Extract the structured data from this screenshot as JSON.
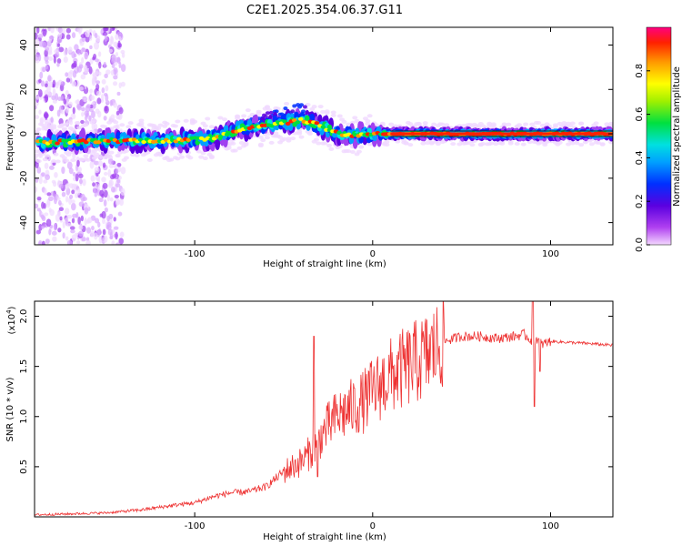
{
  "title": "C2E1.2025.354.06.37.G11",
  "chart_data": [
    {
      "type": "heatmap",
      "xlabel": "Height of straight line (km)",
      "ylabel": "Frequency (Hz)",
      "xlim": [
        -190,
        135
      ],
      "ylim": [
        -50,
        48
      ],
      "xticks": [
        -100,
        0,
        100
      ],
      "xtick_labels": [
        "-100",
        "0",
        "100"
      ],
      "yticks": [
        -40,
        -20,
        0,
        20,
        40
      ],
      "ytick_labels": [
        "-40",
        "-20",
        "0",
        "20",
        "40"
      ],
      "ridge_x": [
        -190,
        -150,
        -110,
        -90,
        -75,
        -60,
        -50,
        -40,
        -33,
        -25,
        -18,
        -10,
        -5,
        0,
        10,
        20,
        40,
        60,
        80,
        90,
        110,
        135
      ],
      "ridge_y": [
        -4,
        -3,
        -3,
        -2,
        2,
        4,
        5,
        6,
        5,
        2,
        0,
        -1,
        0,
        0,
        0,
        0,
        0,
        0,
        0,
        0,
        0,
        0
      ],
      "colorbar": {
        "label": "Normalized spectral amplitude",
        "range": [
          0,
          1
        ],
        "ticks": [
          0.0,
          0.2,
          0.4,
          0.6,
          0.8
        ],
        "tick_labels": [
          "0.0",
          "0.2",
          "0.4",
          "0.6",
          "0.8"
        ]
      }
    },
    {
      "type": "line",
      "xlabel": "Height of straight line (km)",
      "ylabel": "SNR (10 * v/v)",
      "scale_label": "(x10",
      "scale_exp": "4",
      "xlim": [
        -190,
        135
      ],
      "ylim": [
        0,
        2.15
      ],
      "xticks": [
        -100,
        0,
        100
      ],
      "xtick_labels": [
        "-100",
        "0",
        "100"
      ],
      "yticks": [
        0.5,
        1.0,
        1.5,
        2.0
      ],
      "ytick_labels": [
        "0.5",
        "1.0",
        "1.5",
        "2.0"
      ],
      "series_color": "#ee3333",
      "x": [
        -190,
        -150,
        -130,
        -110,
        -100,
        -90,
        -80,
        -70,
        -60,
        -50,
        -40,
        -35,
        -30,
        -25,
        -20,
        -15,
        -10,
        -5,
        0,
        10,
        20,
        30,
        40,
        50,
        60,
        70,
        80,
        85,
        90,
        92,
        95,
        100,
        110,
        120,
        135
      ],
      "values": [
        0.02,
        0.04,
        0.07,
        0.12,
        0.14,
        0.2,
        0.24,
        0.25,
        0.3,
        0.45,
        0.55,
        0.65,
        0.78,
        0.9,
        1.0,
        1.05,
        1.1,
        1.15,
        1.25,
        1.4,
        1.5,
        1.6,
        1.75,
        1.8,
        1.8,
        1.78,
        1.8,
        1.82,
        1.75,
        1.78,
        1.72,
        1.75,
        1.74,
        1.73,
        1.71
      ],
      "spikes": [
        {
          "x": -33,
          "value": 1.8
        },
        {
          "x": -31,
          "value": 0.4
        },
        {
          "x": 90,
          "value": 2.15
        },
        {
          "x": 91,
          "value": 1.1
        },
        {
          "x": 94,
          "value": 1.45
        }
      ]
    }
  ]
}
